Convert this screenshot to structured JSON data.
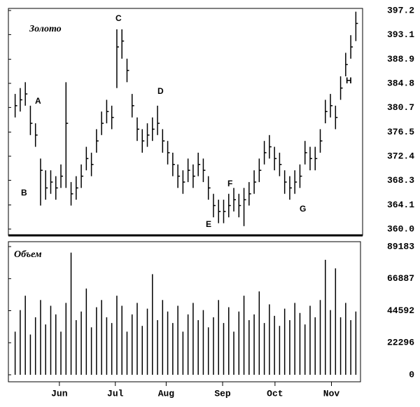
{
  "chart_data": [
    {
      "type": "ohlc",
      "title": "Золото",
      "high": [
        383,
        384,
        385,
        381,
        378,
        372,
        370,
        370,
        369,
        371,
        385,
        368,
        369,
        371,
        374,
        373,
        377,
        380,
        382,
        381,
        394,
        394,
        389,
        383,
        379,
        377,
        378,
        379,
        381,
        377,
        375,
        373,
        371,
        370,
        372,
        371,
        373,
        372,
        369,
        366,
        365,
        365,
        366,
        367,
        366,
        367,
        368,
        370,
        372,
        375,
        376,
        374,
        373,
        370,
        369,
        370,
        371,
        375,
        374,
        374,
        377,
        382,
        383,
        381,
        386,
        390,
        393,
        397
      ],
      "low": [
        379,
        380,
        381,
        376,
        374,
        364,
        365,
        366,
        365,
        367,
        367,
        364,
        365,
        367,
        370,
        369,
        373,
        376,
        378,
        377,
        384,
        389,
        385,
        379,
        375,
        373,
        374,
        375,
        376,
        373,
        371,
        369,
        367,
        366,
        368,
        367,
        369,
        368,
        365,
        362,
        361,
        361,
        362,
        363,
        362,
        360.5,
        364,
        366,
        368,
        371,
        372,
        370,
        369,
        366,
        365,
        366,
        367,
        371,
        370,
        370,
        373,
        378,
        379,
        377,
        382,
        386,
        389,
        392
      ],
      "close": [
        381,
        382,
        383,
        378,
        376,
        370,
        367,
        368,
        367,
        369,
        378,
        366,
        367,
        369,
        372,
        371,
        375,
        378,
        380,
        379,
        391,
        392,
        387,
        381,
        377,
        375,
        376,
        377,
        378,
        375,
        373,
        371,
        369,
        368,
        370,
        369,
        371,
        370,
        367,
        364,
        363,
        363,
        364,
        365,
        364,
        365,
        366,
        368,
        370,
        373,
        374,
        372,
        371,
        368,
        367,
        368,
        369,
        373,
        372,
        372,
        375,
        380,
        381,
        379,
        384,
        388,
        391,
        395
      ],
      "xlim": [
        0,
        68
      ],
      "ylim": [
        360,
        397.2
      ],
      "yticks": [
        397.2,
        393.1,
        388.9,
        384.8,
        380.7,
        376.5,
        372.4,
        368.3,
        364.1,
        {
          "value": 360,
          "label": "360.0"
        }
      ],
      "annotations": [
        "A",
        "B",
        "C",
        "D",
        "E",
        "F",
        "G",
        "H"
      ]
    },
    {
      "type": "bar",
      "title": "Объем",
      "values": [
        30000,
        45000,
        55000,
        28000,
        40000,
        52000,
        35000,
        48000,
        42000,
        30000,
        50000,
        85000,
        38000,
        44000,
        60000,
        33000,
        47000,
        52000,
        40000,
        36000,
        55000,
        48000,
        30000,
        42000,
        50000,
        34000,
        46000,
        70000,
        38000,
        52000,
        44000,
        36000,
        48000,
        30000,
        42000,
        50000,
        38000,
        45000,
        33000,
        40000,
        52000,
        36000,
        47000,
        30000,
        44000,
        55000,
        38000,
        42000,
        58000,
        36000,
        49000,
        41000,
        34000,
        46000,
        38000,
        50000,
        43000,
        35000,
        48000,
        40000,
        52000,
        80000,
        45000,
        74000,
        40000,
        50000,
        38000,
        44000
      ],
      "xlim": [
        0,
        68
      ],
      "ylim": [
        0,
        89183
      ],
      "yticks": [
        0,
        22296,
        44592,
        66887,
        89183
      ],
      "xticks": [
        {
          "value": 9.2,
          "label": "Jun"
        },
        {
          "value": 20.2,
          "label": "Jul"
        },
        {
          "value": 30.2,
          "label": "Aug"
        },
        {
          "value": 41.3,
          "label": "Sep"
        },
        {
          "value": 51.6,
          "label": "Oct"
        },
        {
          "value": 62.7,
          "label": "Nov"
        }
      ]
    }
  ]
}
